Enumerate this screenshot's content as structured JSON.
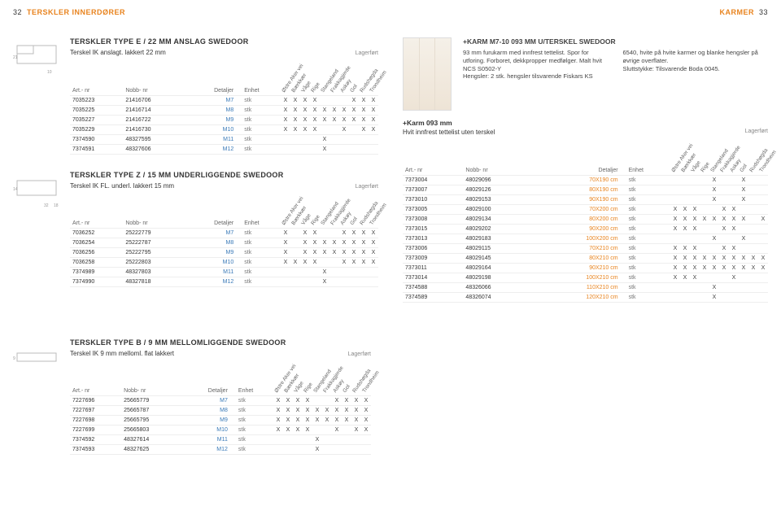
{
  "page_left": "32",
  "page_left_label": "TERSKLER INNERDØRER",
  "page_right_label": "KARMER",
  "page_right": "33",
  "locations": [
    "Østre Aker vei",
    "Bærkkær",
    "Våge",
    "Rige",
    "Stangeland",
    "Frakkagjerde",
    "Askøy",
    "Gol",
    "Rudshøgda",
    "Trondheim"
  ],
  "col_art": "Art.- nr",
  "col_nobb": "Nobb- nr",
  "col_det": "Detaljer",
  "col_enh": "Enhet",
  "lager": "Lagerført",
  "unit": "stk",
  "typeE": {
    "title": "TERSKLER TYPE E / 22 MM ANSLAG SWEDOOR",
    "subtitle": "Terskel IK anslagt. lakkert 22 mm",
    "rows": [
      {
        "art": "7035223",
        "nobb": "21416706",
        "det": "M7",
        "x": [
          1,
          1,
          1,
          1,
          0,
          0,
          0,
          1,
          1,
          1
        ]
      },
      {
        "art": "7035225",
        "nobb": "21416714",
        "det": "M8",
        "x": [
          1,
          1,
          1,
          1,
          1,
          1,
          1,
          1,
          1,
          1
        ]
      },
      {
        "art": "7035227",
        "nobb": "21416722",
        "det": "M9",
        "x": [
          1,
          1,
          1,
          1,
          1,
          1,
          1,
          1,
          1,
          1
        ]
      },
      {
        "art": "7035229",
        "nobb": "21416730",
        "det": "M10",
        "x": [
          1,
          1,
          1,
          1,
          0,
          0,
          1,
          0,
          1,
          1
        ]
      },
      {
        "art": "7374590",
        "nobb": "48327595",
        "det": "M11",
        "x": [
          0,
          0,
          0,
          0,
          1,
          0,
          0,
          0,
          0,
          0
        ]
      },
      {
        "art": "7374591",
        "nobb": "48327606",
        "det": "M12",
        "x": [
          0,
          0,
          0,
          0,
          1,
          0,
          0,
          0,
          0,
          0
        ]
      }
    ]
  },
  "typeZ": {
    "title": "TERSKLER TYPE Z / 15 MM UNDERLIGGENDE SWEDOOR",
    "subtitle": "Terskel IK FL. underl. lakkert 15 mm",
    "rows": [
      {
        "art": "7036252",
        "nobb": "25222779",
        "det": "M7",
        "x": [
          1,
          0,
          1,
          1,
          0,
          0,
          1,
          1,
          1,
          1
        ]
      },
      {
        "art": "7036254",
        "nobb": "25222787",
        "det": "M8",
        "x": [
          1,
          0,
          1,
          1,
          1,
          1,
          1,
          1,
          1,
          1
        ]
      },
      {
        "art": "7036256",
        "nobb": "25222795",
        "det": "M9",
        "x": [
          1,
          0,
          1,
          1,
          1,
          1,
          1,
          1,
          1,
          1
        ]
      },
      {
        "art": "7036258",
        "nobb": "25222803",
        "det": "M10",
        "x": [
          1,
          1,
          1,
          1,
          0,
          0,
          1,
          1,
          1,
          1
        ]
      },
      {
        "art": "7374989",
        "nobb": "48327803",
        "det": "M11",
        "x": [
          0,
          0,
          0,
          0,
          1,
          0,
          0,
          0,
          0,
          0
        ]
      },
      {
        "art": "7374990",
        "nobb": "48327818",
        "det": "M12",
        "x": [
          0,
          0,
          0,
          0,
          1,
          0,
          0,
          0,
          0,
          0
        ]
      }
    ]
  },
  "typeB": {
    "title": "TERSKLER TYPE B / 9 MM MELLOMLIGGENDE SWEDOOR",
    "subtitle": "Terskel IK 9 mm melloml. flat lakkert",
    "rows": [
      {
        "art": "7227696",
        "nobb": "25665779",
        "det": "M7",
        "x": [
          1,
          1,
          1,
          1,
          0,
          0,
          1,
          1,
          1,
          1
        ]
      },
      {
        "art": "7227697",
        "nobb": "25665787",
        "det": "M8",
        "x": [
          1,
          1,
          1,
          1,
          1,
          1,
          1,
          1,
          1,
          1
        ]
      },
      {
        "art": "7227698",
        "nobb": "25665795",
        "det": "M9",
        "x": [
          1,
          1,
          1,
          1,
          1,
          1,
          1,
          1,
          1,
          1
        ]
      },
      {
        "art": "7227699",
        "nobb": "25665803",
        "det": "M10",
        "x": [
          1,
          1,
          1,
          1,
          0,
          0,
          1,
          0,
          1,
          1
        ]
      },
      {
        "art": "7374592",
        "nobb": "48327614",
        "det": "M11",
        "x": [
          0,
          0,
          0,
          0,
          1,
          0,
          0,
          0,
          0,
          0
        ]
      },
      {
        "art": "7374593",
        "nobb": "48327625",
        "det": "M12",
        "x": [
          0,
          0,
          0,
          0,
          1,
          0,
          0,
          0,
          0,
          0
        ]
      }
    ]
  },
  "karm_top": {
    "title": "+KARM M7-10 093 MM U/TERSKEL SWEDOOR",
    "desc_left": "93 mm furukarm med innfrest tettelist. Spor for utforing. Forboret, dekkpropper medfølger. Malt hvit NCS S0502-Y\nHengsler: 2 stk. hengsler tilsvarende Fiskars KS",
    "desc_right": "6540, hvite på hvite karmer og blanke hengsler på øvrige overflater.\nSluttstykke: Tilsvarende Boda 0045."
  },
  "karm_table": {
    "title": "+Karm 093 mm",
    "subtitle": "Hvit innfrest tettelist uten terskel",
    "rows": [
      {
        "art": "7373004",
        "nobb": "48029096",
        "det": "70X190 cm",
        "x": [
          0,
          0,
          0,
          0,
          1,
          0,
          0,
          1,
          0,
          0
        ]
      },
      {
        "art": "7373007",
        "nobb": "48029126",
        "det": "80X190 cm",
        "x": [
          0,
          0,
          0,
          0,
          1,
          0,
          0,
          1,
          0,
          0
        ]
      },
      {
        "art": "7373010",
        "nobb": "48029153",
        "det": "90X190 cm",
        "x": [
          0,
          0,
          0,
          0,
          1,
          0,
          0,
          1,
          0,
          0
        ]
      },
      {
        "art": "7373005",
        "nobb": "48029100",
        "det": "70X200 cm",
        "x": [
          1,
          1,
          1,
          0,
          0,
          1,
          1,
          0,
          0,
          0
        ]
      },
      {
        "art": "7373008",
        "nobb": "48029134",
        "det": "80X200 cm",
        "x": [
          1,
          1,
          1,
          1,
          1,
          1,
          1,
          1,
          0,
          1
        ]
      },
      {
        "art": "7373015",
        "nobb": "48029202",
        "det": "90X200 cm",
        "x": [
          1,
          1,
          1,
          0,
          0,
          1,
          1,
          0,
          0,
          0
        ]
      },
      {
        "art": "7373013",
        "nobb": "48029183",
        "det": "100X200 cm",
        "x": [
          0,
          0,
          0,
          0,
          1,
          0,
          0,
          1,
          0,
          0
        ]
      },
      {
        "art": "7373006",
        "nobb": "48029115",
        "det": "70X210 cm",
        "x": [
          1,
          1,
          1,
          0,
          0,
          1,
          1,
          0,
          0,
          0
        ]
      },
      {
        "art": "7373009",
        "nobb": "48029145",
        "det": "80X210 cm",
        "x": [
          1,
          1,
          1,
          1,
          1,
          1,
          1,
          1,
          1,
          1
        ]
      },
      {
        "art": "7373011",
        "nobb": "48029164",
        "det": "90X210 cm",
        "x": [
          1,
          1,
          1,
          1,
          1,
          1,
          1,
          1,
          1,
          1
        ]
      },
      {
        "art": "7373014",
        "nobb": "48029198",
        "det": "100X210 cm",
        "x": [
          1,
          1,
          1,
          0,
          0,
          0,
          1,
          0,
          0,
          0
        ]
      },
      {
        "art": "7374588",
        "nobb": "48326066",
        "det": "110X210 cm",
        "x": [
          0,
          0,
          0,
          0,
          1,
          0,
          0,
          0,
          0,
          0
        ]
      },
      {
        "art": "7374589",
        "nobb": "48326074",
        "det": "120X210 cm",
        "x": [
          0,
          0,
          0,
          0,
          1,
          0,
          0,
          0,
          0,
          0
        ]
      }
    ]
  },
  "colors": {
    "link_blue": "#3a7ab8",
    "link_orange": "#e8831e"
  }
}
